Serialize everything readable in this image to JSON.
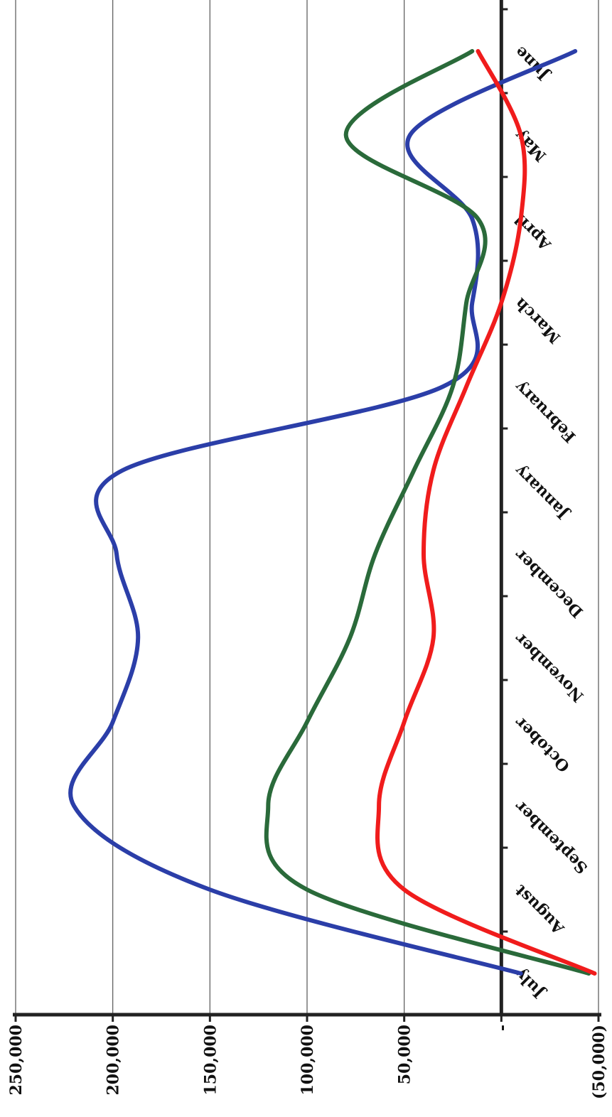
{
  "chart_data": {
    "type": "line",
    "orientation": "rotated-90-clockwise",
    "categories": [
      "July",
      "August",
      "September",
      "October",
      "November",
      "December",
      "January",
      "February",
      "March",
      "April",
      "May",
      "June"
    ],
    "y_tick_labels": [
      "250,000",
      "200,000",
      "150,000",
      "100,000",
      "50,000",
      "-",
      "(50,000)"
    ],
    "ylim": [
      -50000,
      250000
    ],
    "grid": true,
    "legend": "none",
    "series": [
      {
        "color": "#2b3ea8",
        "values": [
          -10000,
          150000,
          220000,
          200000,
          187000,
          198000,
          195000,
          30000,
          15000,
          15000,
          47000,
          -38000
        ]
      },
      {
        "color": "#2a6a3a",
        "values": [
          -45000,
          100000,
          120000,
          100000,
          78000,
          65000,
          45000,
          25000,
          18000,
          12000,
          80000,
          15000
        ]
      },
      {
        "color": "#f01c1c",
        "values": [
          -48000,
          50000,
          63000,
          50000,
          35000,
          40000,
          35000,
          18000,
          0,
          -10000,
          -10000,
          12000
        ]
      }
    ]
  }
}
